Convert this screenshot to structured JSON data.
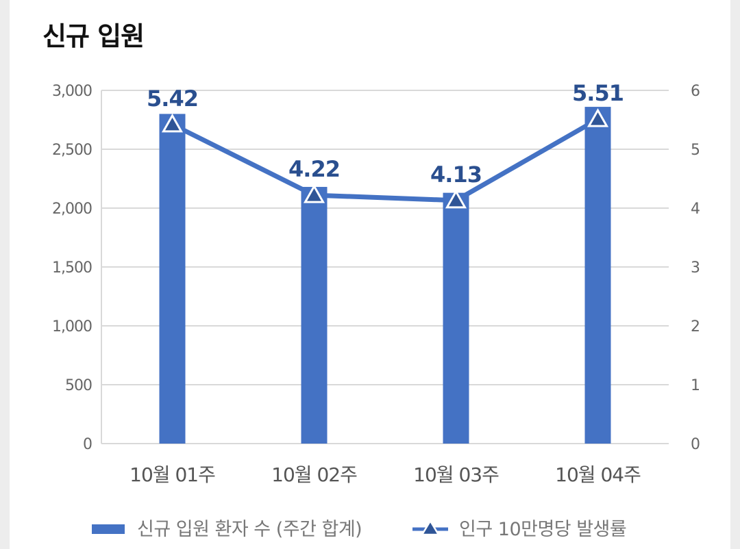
{
  "title": "신규 입원",
  "colors": {
    "bar": "#4472c4",
    "line": "#4472c4",
    "marker_fill": "#2f5597",
    "label": "#2a4f8f",
    "grid": "#d9d9d9"
  },
  "legend": {
    "bar_label": "신규 입원 환자 수 (주간 합계)",
    "line_label": "인구 10만명당 발생률"
  },
  "chart_data": {
    "type": "bar",
    "categories": [
      "10월 01주",
      "10월 02주",
      "10월 03주",
      "10월 04주"
    ],
    "series": [
      {
        "name": "신규 입원 환자 수 (주간 합계)",
        "type": "bar",
        "axis": "left",
        "values": [
          2800,
          2180,
          2130,
          2860
        ]
      },
      {
        "name": "인구 10만명당 발생률",
        "type": "line",
        "axis": "right",
        "values": [
          5.42,
          4.22,
          4.13,
          5.51
        ],
        "labels": [
          "5.42",
          "4.22",
          "4.13",
          "5.51"
        ]
      }
    ],
    "y_left": {
      "min": 0,
      "max": 3000,
      "ticks": [
        0,
        500,
        1000,
        1500,
        2000,
        2500,
        3000
      ],
      "tick_labels": [
        "0",
        "500",
        "1,000",
        "1,500",
        "2,000",
        "2,500",
        "3,000"
      ]
    },
    "y_right": {
      "min": 0,
      "max": 6,
      "ticks": [
        0,
        1,
        2,
        3,
        4,
        5,
        6
      ],
      "tick_labels": [
        "0",
        "1",
        "2",
        "3",
        "4",
        "5",
        "6"
      ]
    },
    "grid": true,
    "legend_position": "bottom"
  }
}
